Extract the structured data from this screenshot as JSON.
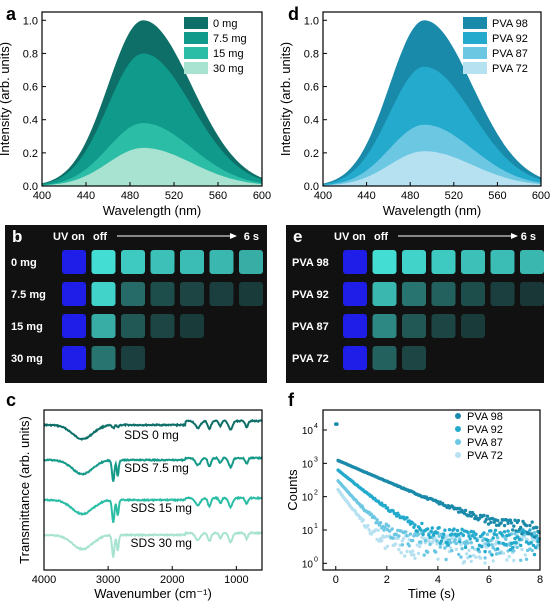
{
  "panel_labels": {
    "a": "a",
    "b": "b",
    "c": "c",
    "d": "d",
    "e": "e",
    "f": "f"
  },
  "colors": {
    "a": [
      "#0d6f67",
      "#0f9a8b",
      "#2bbda6",
      "#a8e3d1"
    ],
    "d": [
      "#1a8aaa",
      "#23aacd",
      "#6cc7e3",
      "#b6e1f1"
    ],
    "c": [
      "#0d6f67",
      "#159a8a",
      "#2bbda6",
      "#a8e3d1"
    ],
    "f": [
      "#1a8aaa",
      "#23aacd",
      "#6cc7e3",
      "#b6e1f1"
    ]
  },
  "chart_data": [
    {
      "id": "a",
      "type": "area",
      "xlabel": "Wavelength (nm)",
      "ylabel": "Intensity (arb. units)",
      "xlim": [
        400,
        600
      ],
      "ylim": [
        0,
        1.05
      ],
      "xticks": [
        "400",
        "440",
        "480",
        "520",
        "560",
        "600"
      ],
      "yticks": [
        "0.0",
        "0.2",
        "0.4",
        "0.6",
        "0.8",
        "1.0"
      ],
      "peak_nm": 492,
      "series": [
        {
          "name": "0 mg",
          "peak": 1.0
        },
        {
          "name": "7.5 mg",
          "peak": 0.8
        },
        {
          "name": "15 mg",
          "peak": 0.38
        },
        {
          "name": "30 mg",
          "peak": 0.23
        }
      ],
      "legend": "top-right"
    },
    {
      "id": "d",
      "type": "area",
      "xlabel": "Wavelength (nm)",
      "ylabel": "Intensity (arb. units)",
      "xlim": [
        400,
        600
      ],
      "ylim": [
        0,
        1.05
      ],
      "xticks": [
        "400",
        "440",
        "480",
        "520",
        "560",
        "600"
      ],
      "yticks": [
        "0.0",
        "0.2",
        "0.4",
        "0.6",
        "0.8",
        "1.0"
      ],
      "peak_nm": 493,
      "series": [
        {
          "name": "PVA 98",
          "peak": 1.0
        },
        {
          "name": "PVA 92",
          "peak": 0.72
        },
        {
          "name": "PVA 87",
          "peak": 0.37
        },
        {
          "name": "PVA 72",
          "peak": 0.21
        }
      ],
      "legend": "top-right"
    },
    {
      "id": "c",
      "type": "line",
      "xlabel": "Wavenumber (cm⁻¹)",
      "ylabel": "Transmittance (arb. units)",
      "xlim": [
        4000,
        600
      ],
      "xticks": [
        "4000",
        "3000",
        "2000",
        "1000"
      ],
      "series": [
        {
          "name": "SDS 0 mg"
        },
        {
          "name": "SDS 7.5 mg"
        },
        {
          "name": "SDS 15 mg"
        },
        {
          "name": "SDS 30 mg"
        }
      ]
    },
    {
      "id": "f",
      "type": "scatter",
      "xlabel": "Time (s)",
      "ylabel": "Counts",
      "xlim": [
        -0.5,
        8
      ],
      "ylim_log10": [
        -0.2,
        4.6
      ],
      "xticks": [
        "0",
        "2",
        "4",
        "6",
        "8"
      ],
      "yticks_exp": [
        "0",
        "1",
        "2",
        "3",
        "4"
      ],
      "series": [
        {
          "name": "PVA 98",
          "amp": 1300,
          "tau": 1.3,
          "base": 2
        },
        {
          "name": "PVA 92",
          "amp": 700,
          "tau": 0.7,
          "base": 1.5
        },
        {
          "name": "PVA 87",
          "amp": 350,
          "tau": 0.5,
          "base": 1.2
        },
        {
          "name": "PVA 72",
          "amp": 200,
          "tau": 0.4,
          "base": 1.0
        }
      ],
      "legend": "top-right"
    }
  ],
  "photo_b": {
    "header_left": "UV on",
    "header_mid": "off",
    "header_right": "6 s",
    "rows": [
      {
        "label": "0 mg",
        "levels": [
          1,
          0.95,
          0.85,
          0.8,
          0.78,
          0.75,
          0.7
        ]
      },
      {
        "label": "7.5 mg",
        "levels": [
          1,
          0.9,
          0.35,
          0.2,
          0.15,
          0.12,
          0.1
        ]
      },
      {
        "label": "15 mg",
        "levels": [
          1,
          0.7,
          0.25,
          0.15,
          0.1
        ]
      },
      {
        "label": "30 mg",
        "levels": [
          1,
          0.4,
          0.12
        ]
      }
    ]
  },
  "photo_e": {
    "header_left": "UV on",
    "header_mid": "off",
    "header_right": "6 s",
    "rows": [
      {
        "label": "PVA 98",
        "levels": [
          1,
          0.95,
          0.9,
          0.85,
          0.8,
          0.78,
          0.75
        ]
      },
      {
        "label": "PVA 92",
        "levels": [
          1,
          0.75,
          0.4,
          0.3,
          0.2,
          0.12,
          0.08
        ]
      },
      {
        "label": "PVA 87",
        "levels": [
          1,
          0.5,
          0.25,
          0.15,
          0.1
        ]
      },
      {
        "label": "PVA 72",
        "levels": [
          1,
          0.3,
          0.15
        ]
      }
    ]
  }
}
